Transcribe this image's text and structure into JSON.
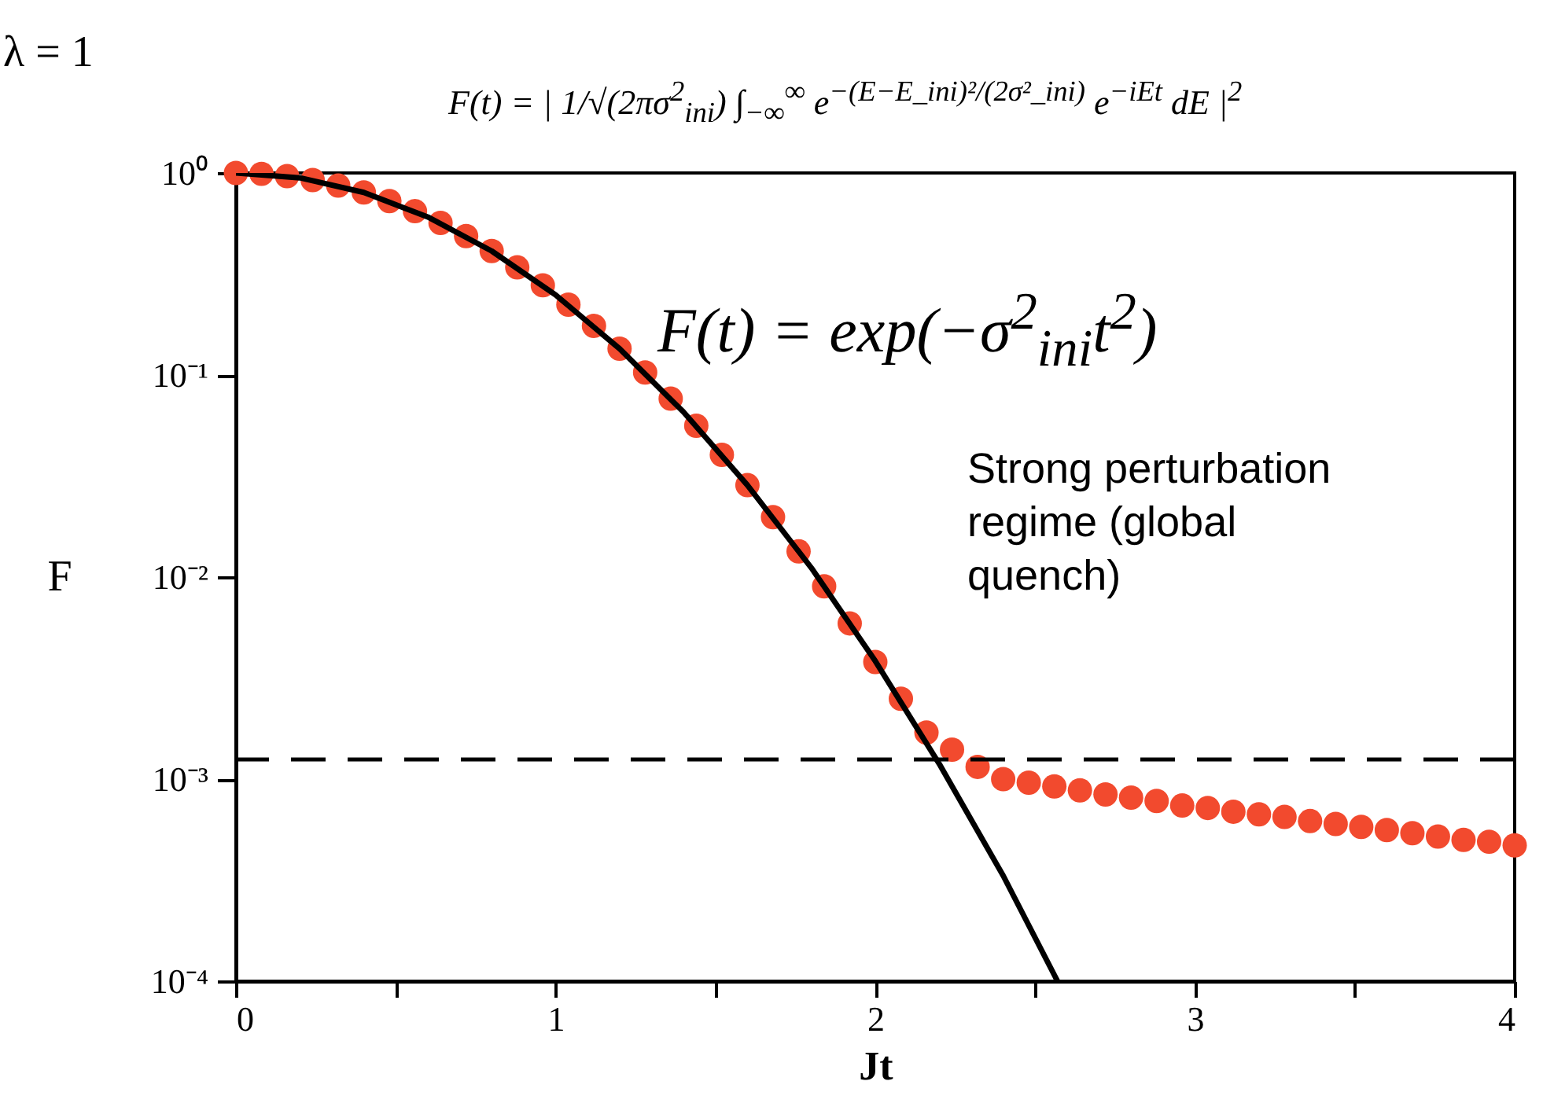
{
  "chart_data": {
    "type": "scatter",
    "xlabel": "Jt",
    "ylabel": "F",
    "xlim": [
      0,
      4
    ],
    "ylim": [
      0.0001,
      1
    ],
    "log": "y",
    "xticks": [
      0,
      {
        "value": 0.5,
        "label": null
      },
      1,
      {
        "value": 1.5,
        "label": null
      },
      2,
      {
        "value": 2.5,
        "label": null
      },
      3,
      {
        "value": 3.5,
        "label": null
      },
      4
    ],
    "yticks": [
      {
        "value": 1,
        "label": "10⁰"
      },
      {
        "value": 0.1,
        "label": "10⁻¹"
      },
      {
        "value": 0.01,
        "label": "10⁻²"
      },
      {
        "value": 0.001,
        "label": "10⁻³"
      },
      {
        "value": 0.0001,
        "label": "10⁻⁴"
      }
    ],
    "series": [
      {
        "marker": "circle",
        "color": "#f24a2e",
        "x": [
          0,
          0.08,
          0.16,
          0.24,
          0.32,
          0.4,
          0.48,
          0.56,
          0.64,
          0.72,
          0.8,
          0.88,
          0.96,
          1.04,
          1.12,
          1.2,
          1.28,
          1.36,
          1.44,
          1.52,
          1.6,
          1.68,
          1.76,
          1.84,
          1.92,
          2.0,
          2.08,
          2.16,
          2.24,
          2.32,
          2.4,
          2.48,
          2.56,
          2.64,
          2.72,
          2.8,
          2.88,
          2.96,
          3.04,
          3.12,
          3.2,
          3.28,
          3.36,
          3.44,
          3.52,
          3.6,
          3.68,
          3.76,
          3.84,
          3.92,
          4.0
        ],
        "values": [
          1,
          0.99,
          0.965,
          0.923,
          0.867,
          0.801,
          0.726,
          0.647,
          0.566,
          0.487,
          0.411,
          0.341,
          0.278,
          0.223,
          0.175,
          0.135,
          0.103,
          0.0764,
          0.0561,
          0.0403,
          0.0285,
          0.0198,
          0.0134,
          0.009,
          0.0059,
          0.0038,
          0.0025,
          0.0017,
          0.0014,
          0.00115,
          0.001,
          0.00096,
          0.00092,
          0.00088,
          0.00084,
          0.00081,
          0.00078,
          0.00074,
          0.00072,
          0.00069,
          0.00067,
          0.00065,
          0.00062,
          0.0006,
          0.00058,
          0.00056,
          0.00054,
          0.00052,
          0.0005,
          0.00049,
          0.00047
        ]
      },
      {
        "type": "line",
        "color": "#000000",
        "line_style": "solid",
        "x": [
          0,
          0.2,
          0.4,
          0.6,
          0.8,
          1.0,
          1.2,
          1.4,
          1.6,
          1.8,
          2.0,
          2.2,
          2.4,
          2.57
        ],
        "values": [
          1,
          0.946,
          0.801,
          0.606,
          0.411,
          0.249,
          0.135,
          0.0656,
          0.0285,
          0.0111,
          0.00384,
          0.00119,
          0.000333,
          0.0001
        ]
      }
    ],
    "ref_lines": [
      {
        "axis": "y",
        "value": 0.00125,
        "line_style": "dashed",
        "color": "#000000"
      }
    ],
    "annotations": [
      "λ = 1",
      "F(t) = | 1/√(2πσ$^{2}$$_{ini}$) ∫$_{−∞}$$^{∞}$ e$^{−(E−E_ini)²/(2σ²_ini)}$ e$^{−iEt}$ dE |$^{2}$",
      "F(t) = exp(−σ$^{2}$$_{ini}$t$^{2}$)",
      "Strong perturbation regime (global quench)"
    ]
  }
}
